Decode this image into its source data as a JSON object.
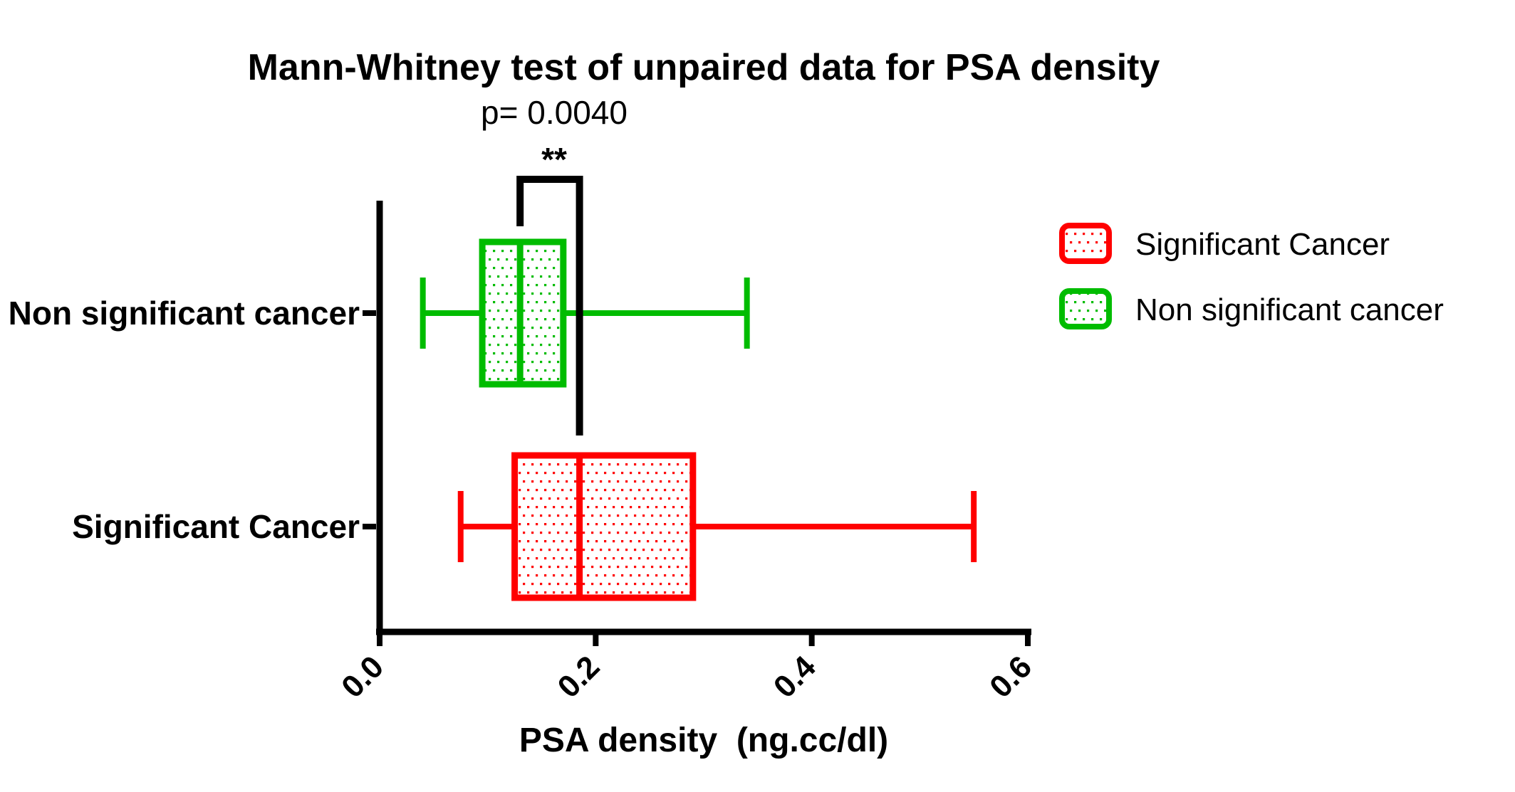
{
  "chart_data": {
    "type": "boxplot",
    "orientation": "horizontal",
    "title": "Mann-Whitney test of unpaired data for PSA density",
    "x_axis": {
      "label": "PSA density  (ng.cc/dl)",
      "min": 0,
      "max": 0.6,
      "ticks": [
        0,
        0.2,
        0.4,
        0.6
      ],
      "tick_labels": [
        "0.0",
        "0.2",
        "0.4",
        "0.6"
      ]
    },
    "categories": [
      "Non significant cancer",
      "Significant Cancer"
    ],
    "series": [
      {
        "name": "Non significant cancer",
        "color": "#00BC00",
        "fill_pattern": "dots",
        "whisker_min": 0.04,
        "q1": 0.095,
        "median": 0.13,
        "q3": 0.17,
        "whisker_max": 0.34
      },
      {
        "name": "Significant Cancer",
        "color": "#FF0000",
        "fill_pattern": "dots",
        "whisker_min": 0.075,
        "q1": 0.125,
        "median": 0.185,
        "q3": 0.29,
        "whisker_max": 0.55
      }
    ],
    "annotation": {
      "p_value": "p= 0.0040",
      "stars": "**",
      "connects": [
        "Non significant cancer",
        "Significant Cancer"
      ]
    },
    "legend": {
      "position": "right",
      "items": [
        {
          "label": "Significant Cancer",
          "color": "#FF0000"
        },
        {
          "label": "Non significant cancer",
          "color": "#00BC00"
        }
      ]
    },
    "axis_color": "#000000",
    "background_color": "#FFFFFF"
  }
}
